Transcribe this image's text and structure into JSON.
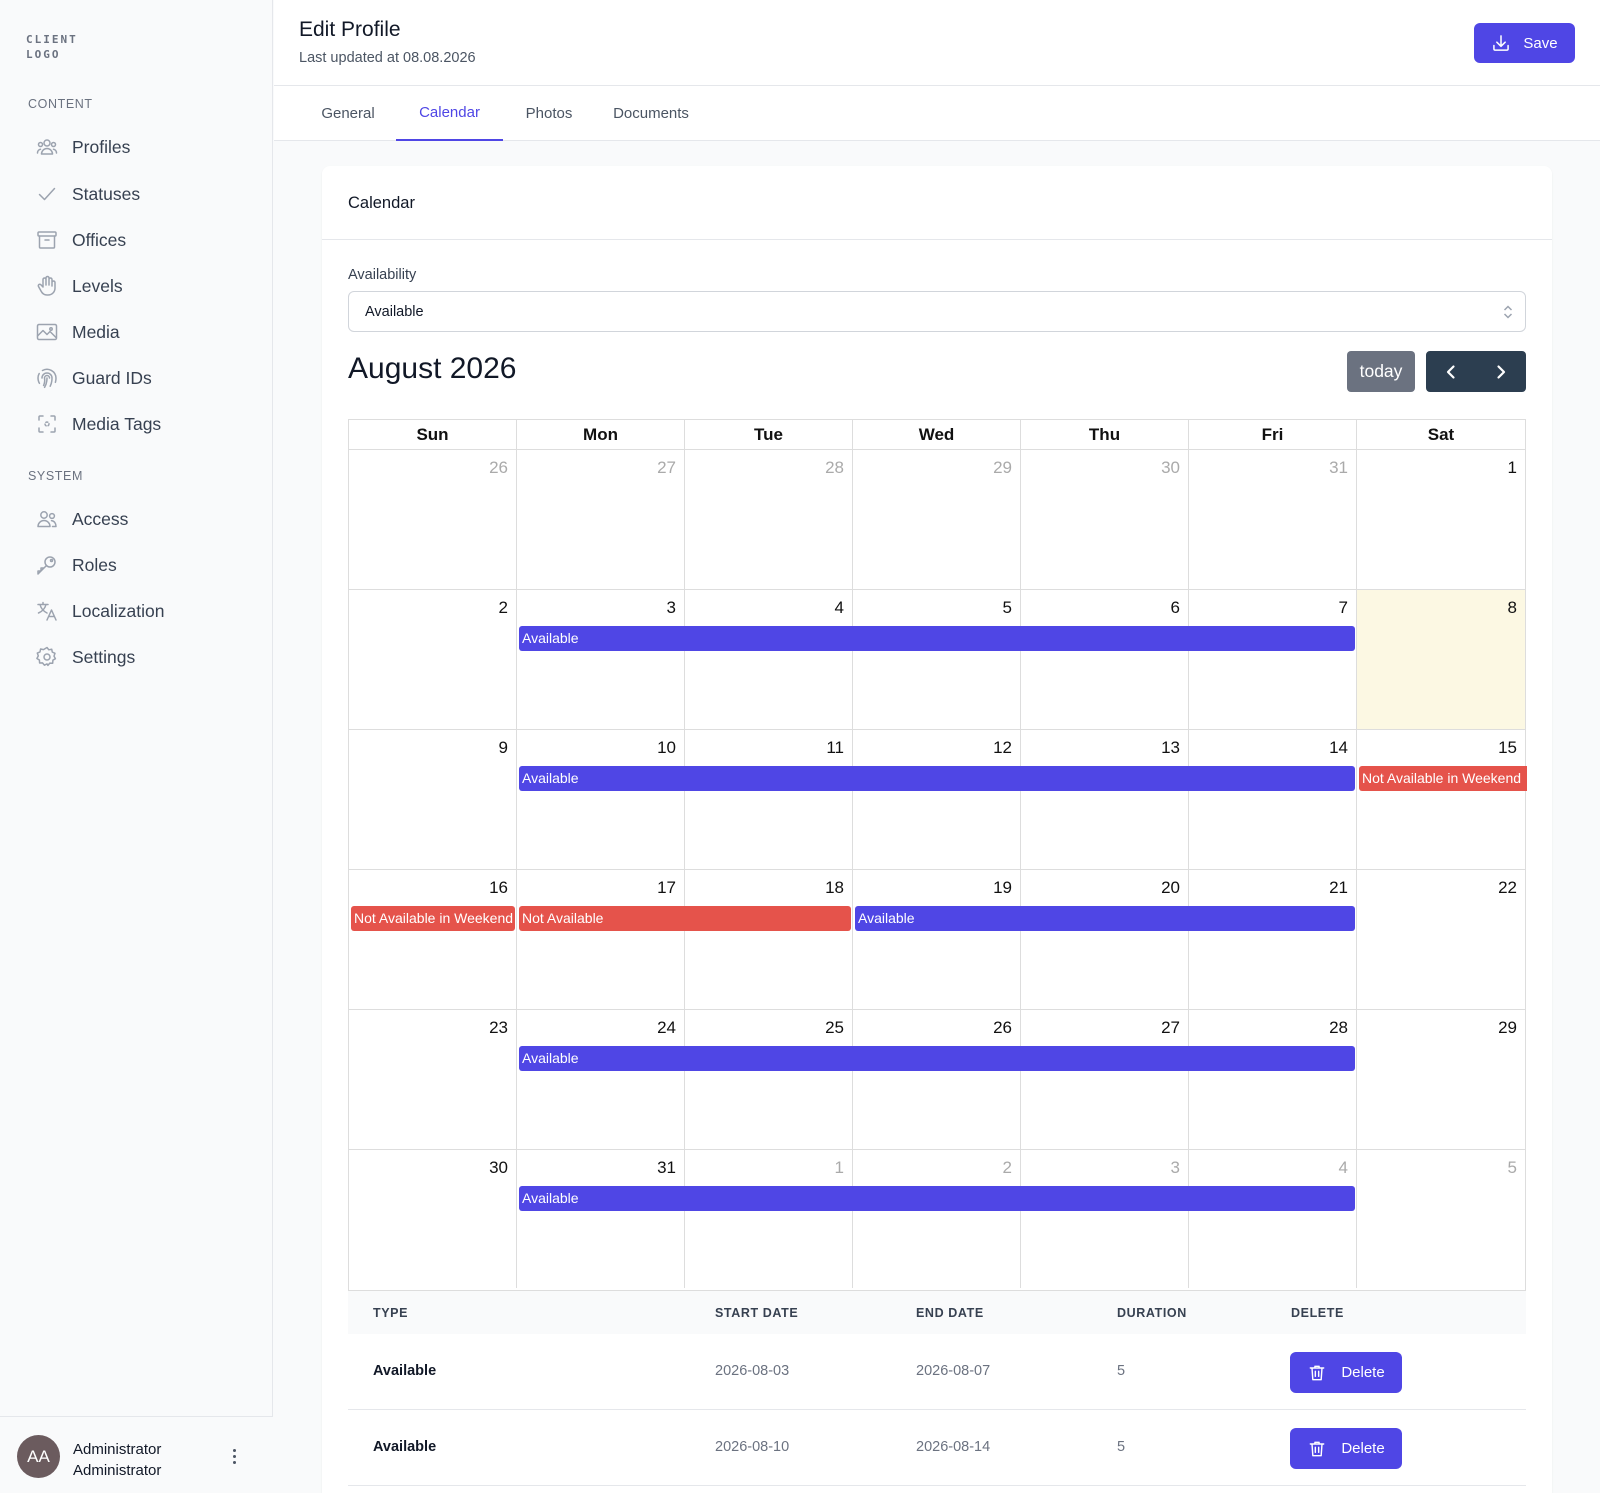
{
  "sidebar": {
    "logo": "CLIENT LOGO",
    "content_label": "CONTENT",
    "content_items": [
      {
        "label": "Profiles",
        "icon": "users-icon"
      },
      {
        "label": "Statuses",
        "icon": "check-icon"
      },
      {
        "label": "Offices",
        "icon": "archive-box-icon"
      },
      {
        "label": "Levels",
        "icon": "hand-icon"
      },
      {
        "label": "Media",
        "icon": "photo-icon"
      },
      {
        "label": "Guard IDs",
        "icon": "fingerprint-icon"
      },
      {
        "label": "Media Tags",
        "icon": "viewfinder-icon"
      }
    ],
    "system_label": "SYSTEM",
    "system_items": [
      {
        "label": "Access",
        "icon": "user-group-icon"
      },
      {
        "label": "Roles",
        "icon": "key-icon"
      },
      {
        "label": "Localization",
        "icon": "language-icon"
      },
      {
        "label": "Settings",
        "icon": "gear-icon"
      }
    ],
    "user": {
      "initials": "AA",
      "name": "Administrator Administrator"
    }
  },
  "header": {
    "title": "Edit Profile",
    "subtitle": "Last updated at 08.08.2026",
    "save_label": "Save"
  },
  "tabs": [
    "General",
    "Calendar",
    "Photos",
    "Documents"
  ],
  "active_tab": "Calendar",
  "card": {
    "title": "Calendar",
    "availability_label": "Availability",
    "availability_value": "Available"
  },
  "calendar": {
    "month_title": "August 2026",
    "today_label": "today",
    "days_of_week": [
      "Sun",
      "Mon",
      "Tue",
      "Wed",
      "Thu",
      "Fri",
      "Sat"
    ],
    "weeks": [
      [
        {
          "d": "26",
          "o": true
        },
        {
          "d": "27",
          "o": true
        },
        {
          "d": "28",
          "o": true
        },
        {
          "d": "29",
          "o": true
        },
        {
          "d": "30",
          "o": true
        },
        {
          "d": "31",
          "o": true
        },
        {
          "d": "1",
          "o": false
        }
      ],
      [
        {
          "d": "2",
          "o": false
        },
        {
          "d": "3",
          "o": false
        },
        {
          "d": "4",
          "o": false
        },
        {
          "d": "5",
          "o": false
        },
        {
          "d": "6",
          "o": false
        },
        {
          "d": "7",
          "o": false
        },
        {
          "d": "8",
          "o": false,
          "today": true
        }
      ],
      [
        {
          "d": "9",
          "o": false
        },
        {
          "d": "10",
          "o": false
        },
        {
          "d": "11",
          "o": false
        },
        {
          "d": "12",
          "o": false
        },
        {
          "d": "13",
          "o": false
        },
        {
          "d": "14",
          "o": false
        },
        {
          "d": "15",
          "o": false
        }
      ],
      [
        {
          "d": "16",
          "o": false
        },
        {
          "d": "17",
          "o": false
        },
        {
          "d": "18",
          "o": false
        },
        {
          "d": "19",
          "o": false
        },
        {
          "d": "20",
          "o": false
        },
        {
          "d": "21",
          "o": false
        },
        {
          "d": "22",
          "o": false
        }
      ],
      [
        {
          "d": "23",
          "o": false
        },
        {
          "d": "24",
          "o": false
        },
        {
          "d": "25",
          "o": false
        },
        {
          "d": "26",
          "o": false
        },
        {
          "d": "27",
          "o": false
        },
        {
          "d": "28",
          "o": false
        },
        {
          "d": "29",
          "o": false
        }
      ],
      [
        {
          "d": "30",
          "o": false
        },
        {
          "d": "31",
          "o": false
        },
        {
          "d": "1",
          "o": true
        },
        {
          "d": "2",
          "o": true
        },
        {
          "d": "3",
          "o": true
        },
        {
          "d": "4",
          "o": true
        },
        {
          "d": "5",
          "o": true
        }
      ]
    ],
    "events": [
      {
        "title": "Available",
        "kind": "available",
        "week": 1,
        "start_day": 1,
        "end_day": 5
      },
      {
        "title": "Available",
        "kind": "available",
        "week": 2,
        "start_day": 1,
        "end_day": 5
      },
      {
        "title": "Not Available in Weekend",
        "kind": "notavail",
        "week": 2,
        "start_day": 6,
        "end_day": 6,
        "continues": true
      },
      {
        "title": "Not Available in Weekend",
        "kind": "notavail",
        "week": 3,
        "start_day": 0,
        "end_day": 0
      },
      {
        "title": "Not Available",
        "kind": "notavail",
        "week": 3,
        "start_day": 1,
        "end_day": 2
      },
      {
        "title": "Available",
        "kind": "available",
        "week": 3,
        "start_day": 3,
        "end_day": 5
      },
      {
        "title": "Available",
        "kind": "available",
        "week": 4,
        "start_day": 1,
        "end_day": 5
      },
      {
        "title": "Available",
        "kind": "available",
        "week": 5,
        "start_day": 1,
        "end_day": 5
      }
    ],
    "colors": {
      "available": "#4f46e5",
      "notavail": "#e5534b",
      "today": "#fcf8e3"
    }
  },
  "table": {
    "headers": [
      "TYPE",
      "START DATE",
      "END DATE",
      "DURATION",
      "DELETE"
    ],
    "rows": [
      {
        "type": "Available",
        "start": "2026-08-03",
        "end": "2026-08-07",
        "duration": "5",
        "action": "Delete"
      },
      {
        "type": "Available",
        "start": "2026-08-10",
        "end": "2026-08-14",
        "duration": "5",
        "action": "Delete"
      }
    ]
  }
}
